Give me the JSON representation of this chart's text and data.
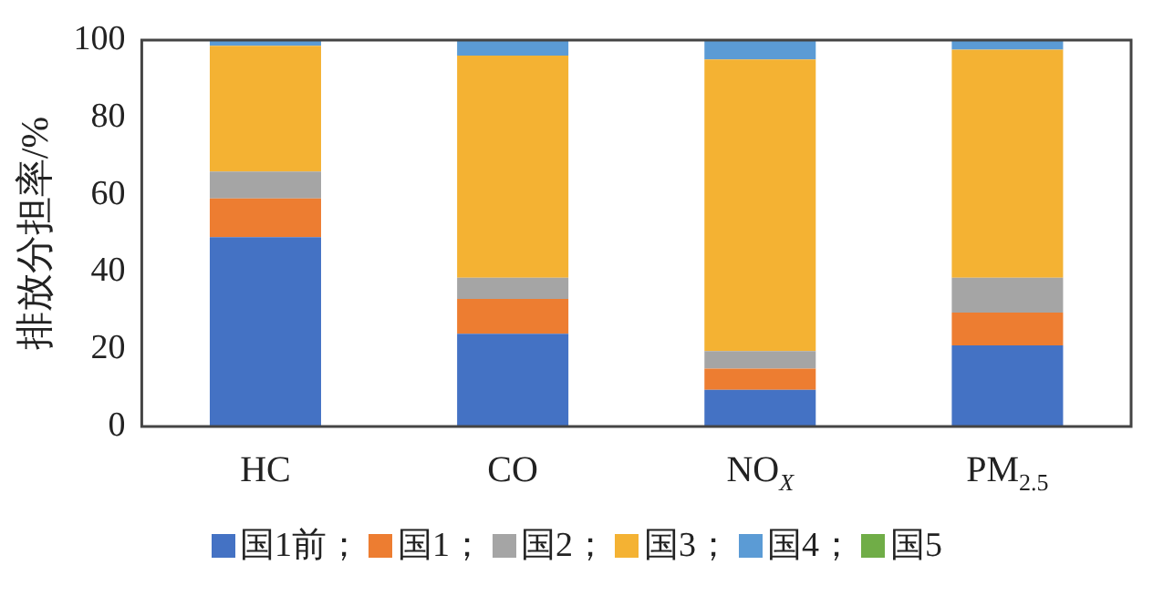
{
  "chart_data": {
    "type": "bar",
    "stacked": true,
    "ylabel": "排放分担率/%",
    "categories": [
      "HC",
      "CO",
      "NO$_{X}$",
      "PM$_{2.5}$"
    ],
    "ylim": [
      0,
      100
    ],
    "yticks": [
      0,
      20,
      40,
      60,
      80,
      100
    ],
    "grid": false,
    "legend": "bottom",
    "series": [
      {
        "name": "国1前；",
        "color": "#4472c4",
        "values": [
          49,
          24,
          9.5,
          21
        ]
      },
      {
        "name": "国1；",
        "color": "#ed7d31",
        "values": [
          10,
          9,
          5.5,
          8.5
        ]
      },
      {
        "name": "国2；",
        "color": "#a5a5a5",
        "values": [
          7,
          5.5,
          4.5,
          9
        ]
      },
      {
        "name": "国3；",
        "color": "#f4b233",
        "values": [
          32.5,
          57.5,
          75.5,
          59
        ]
      },
      {
        "name": "国4；",
        "color": "#5b9bd5",
        "values": [
          1.5,
          4,
          5,
          2.5
        ]
      },
      {
        "name": "国5",
        "color": "#70ad47",
        "values": [
          0,
          0,
          0,
          0
        ]
      }
    ]
  }
}
